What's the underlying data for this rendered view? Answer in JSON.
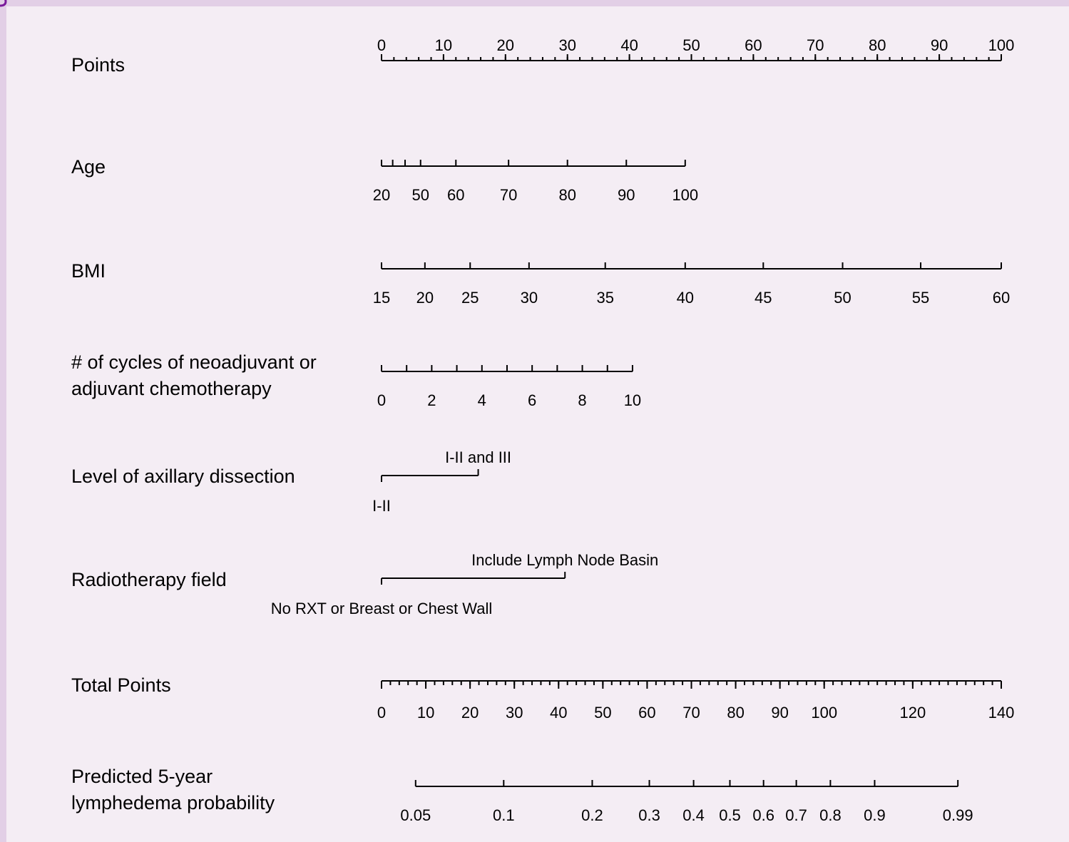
{
  "colors": {
    "background": "#f4edf4",
    "border": "#e2cfe6",
    "line": "#000000",
    "corner_mark": "#7a1a9a"
  },
  "chart_data": {
    "type": "nomogram",
    "title": "",
    "rows": [
      {
        "key": "points",
        "label_lines": [
          "Points"
        ],
        "ticks": [
          "0",
          "10",
          "20",
          "30",
          "40",
          "50",
          "60",
          "70",
          "80",
          "90",
          "100"
        ],
        "tick_points": [
          0,
          10,
          20,
          30,
          40,
          50,
          60,
          70,
          80,
          90,
          100
        ],
        "minor_step": 2,
        "labels_above": true
      },
      {
        "key": "age",
        "label_lines": [
          "Age"
        ],
        "ticks": [
          "20",
          "",
          "",
          "50",
          "60",
          "70",
          "80",
          "90",
          "100"
        ],
        "tick_points": [
          0,
          1.8,
          3.8,
          6.3,
          12,
          20.5,
          30,
          39.5,
          49
        ],
        "labels_above": false
      },
      {
        "key": "bmi",
        "label_lines": [
          "BMI"
        ],
        "ticks": [
          "15",
          "20",
          "25",
          "30",
          "35",
          "40",
          "45",
          "50",
          "55",
          "60"
        ],
        "tick_points": [
          0,
          7,
          14.3,
          23.8,
          36.1,
          49,
          61.6,
          74.4,
          87,
          100
        ],
        "labels_above": false
      },
      {
        "key": "cycles",
        "label_lines": [
          "# of cycles of neoadjuvant or",
          "adjuvant chemotherapy"
        ],
        "ticks": [
          "0",
          "",
          "2",
          "",
          "4",
          "",
          "6",
          "",
          "8",
          "",
          "10"
        ],
        "tick_points": [
          0,
          4.05,
          8.1,
          12.15,
          16.2,
          20.25,
          24.3,
          28.35,
          32.4,
          36.45,
          40.5
        ],
        "labels_above": false
      },
      {
        "key": "axillary",
        "label_lines": [
          "Level of axillary dissection"
        ],
        "categories": [
          {
            "name": "I-II",
            "points": 0,
            "position": "below"
          },
          {
            "name": "I-II and III",
            "points": 15.6,
            "position": "above"
          }
        ]
      },
      {
        "key": "radiotherapy",
        "label_lines": [
          "Radiotherapy field"
        ],
        "categories": [
          {
            "name": "No RXT or Breast or Chest Wall",
            "points": 0,
            "position": "below"
          },
          {
            "name": "Include Lymph Node Basin",
            "points": 29.6,
            "position": "above"
          }
        ]
      },
      {
        "key": "total",
        "label_lines": [
          "Total Points"
        ],
        "ticks": [
          "0",
          "10",
          "20",
          "30",
          "40",
          "50",
          "60",
          "70",
          "80",
          "90",
          "100",
          "120",
          "140"
        ],
        "tick_values": [
          0,
          10,
          20,
          30,
          40,
          50,
          60,
          70,
          80,
          90,
          100,
          120,
          140
        ],
        "range": [
          0,
          140
        ],
        "minor_step": 2,
        "labels_above": false
      },
      {
        "key": "probability",
        "label_lines": [
          "Predicted 5-year",
          "lymphedema probability"
        ],
        "ticks": [
          "0.05",
          "0.1",
          "0.2",
          "0.3",
          "0.4",
          "0.5",
          "0.6",
          "0.7",
          "0.8",
          "0.9",
          "0.99"
        ],
        "tick_total_points": [
          7.7,
          27.6,
          47.6,
          60.5,
          70.5,
          78.7,
          86.3,
          93.7,
          101.4,
          111.4,
          130.2
        ],
        "labels_above": false
      }
    ]
  }
}
